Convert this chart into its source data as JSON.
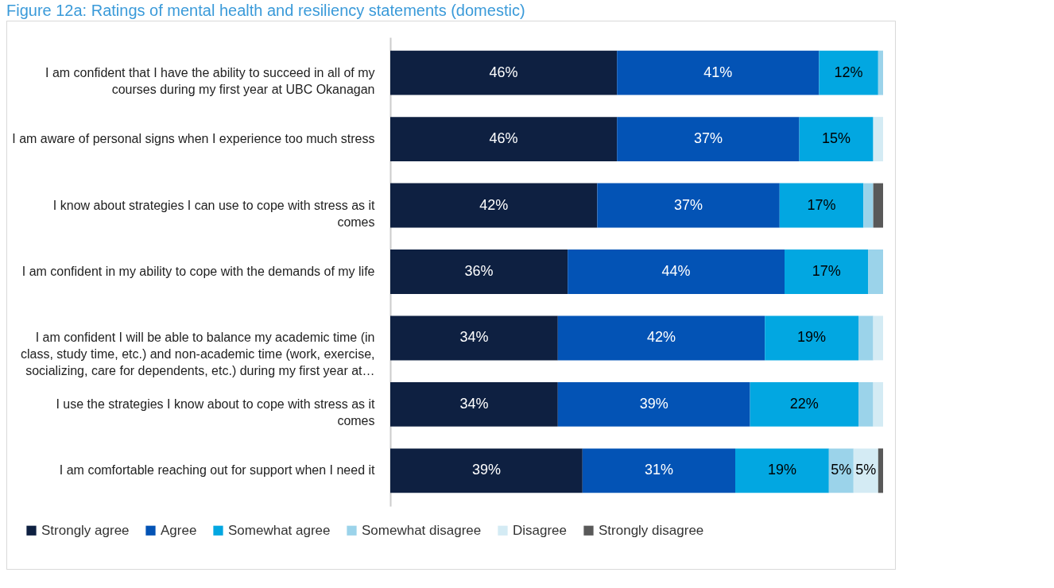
{
  "chart_data": {
    "type": "bar",
    "orientation": "horizontal",
    "stacked": true,
    "title": "Figure 12a: Ratings of mental health and resiliency statements (domestic)",
    "categories": [
      "I am confident that I have the ability to succeed in all of my courses during my first year at UBC Okanagan",
      "I am aware of personal signs when I experience too much stress",
      "I know about strategies I can use to cope with stress as it comes",
      "I am confident in my ability to cope with the demands of my life",
      "I am confident I will be able to balance my academic time (in class, study time, etc.) and non-academic time (work, exercise, socializing, care for dependents, etc.) during my first year at…",
      "I use the strategies I know about to cope with stress as it comes",
      "I am comfortable reaching out for support when I need it"
    ],
    "series": [
      {
        "name": "Strongly agree",
        "color": "#0e2041",
        "values": [
          46,
          46,
          42,
          36,
          34,
          34,
          39
        ],
        "value_labels": [
          "46%",
          "46%",
          "42%",
          "36%",
          "34%",
          "34%",
          "39%"
        ]
      },
      {
        "name": "Agree",
        "color": "#0353b5",
        "values": [
          41,
          37,
          37,
          44,
          42,
          39,
          31
        ],
        "value_labels": [
          "41%",
          "37%",
          "37%",
          "44%",
          "42%",
          "39%",
          "31%"
        ]
      },
      {
        "name": "Somewhat agree",
        "color": "#02a7e1",
        "values": [
          12,
          15,
          17,
          17,
          19,
          22,
          19
        ],
        "value_labels": [
          "12%",
          "15%",
          "17%",
          "17%",
          "19%",
          "22%",
          "19%"
        ]
      },
      {
        "name": "Somewhat disagree",
        "color": "#9bd3ea",
        "values": [
          1,
          null,
          2,
          3,
          3,
          3,
          5
        ],
        "value_labels": [
          null,
          null,
          null,
          null,
          null,
          null,
          "5%"
        ]
      },
      {
        "name": "Disagree",
        "color": "#d4ebf4",
        "values": [
          null,
          2,
          null,
          null,
          2,
          2,
          5
        ],
        "value_labels": [
          null,
          null,
          null,
          null,
          null,
          null,
          "5%"
        ]
      },
      {
        "name": "Strongly disagree",
        "color": "#595959",
        "values": [
          null,
          null,
          2,
          null,
          null,
          null,
          1
        ],
        "value_labels": [
          null,
          null,
          null,
          null,
          null,
          null,
          null
        ]
      }
    ],
    "legend": "bottom"
  }
}
